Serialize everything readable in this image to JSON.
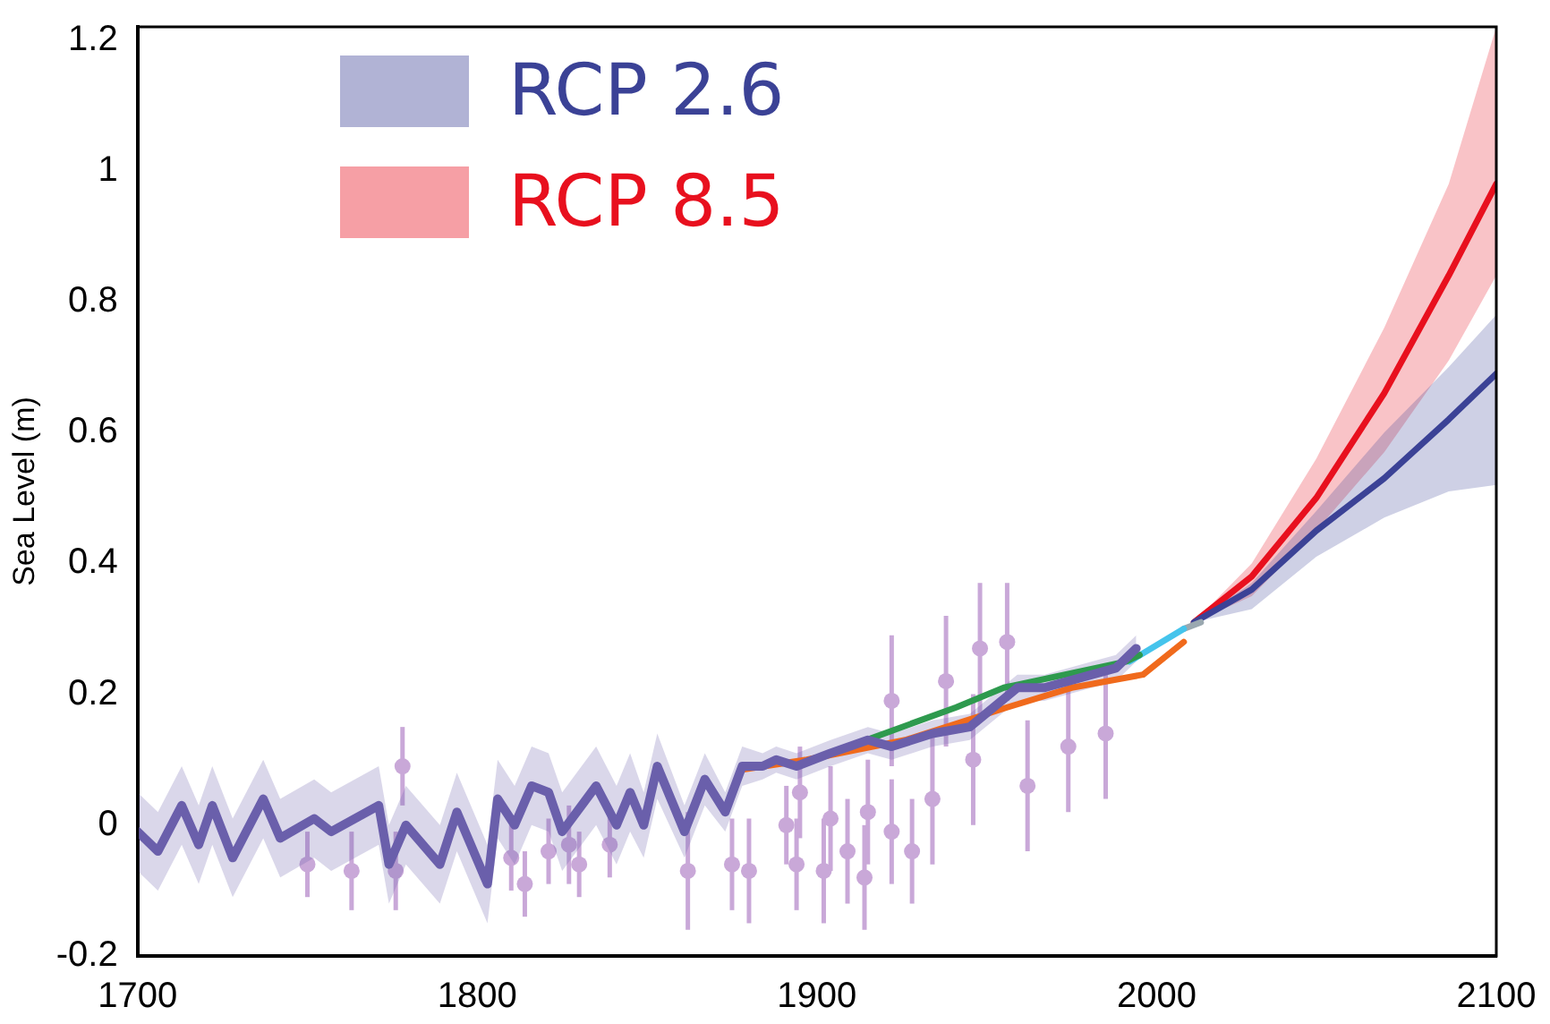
{
  "chart_data": {
    "type": "line",
    "ylabel": "Sea Level (m)",
    "xlim": [
      1700,
      2100
    ],
    "xticks": [
      1700,
      1800,
      1900,
      2000,
      2100
    ],
    "ylim": [
      -0.2,
      1.22
    ],
    "yticks": [
      -0.2,
      0,
      0.2,
      0.4,
      0.6,
      0.8,
      1,
      1.2
    ],
    "grid": false,
    "legend": "top left",
    "marker": "none",
    "line_style": "solid",
    "series": [
      {
        "type": "scatter",
        "marker": "circle",
        "color": "#c9a8d8",
        "x": [
          1750,
          1763,
          1776,
          1778,
          1810,
          1814,
          1821,
          1827,
          1830,
          1839,
          1862,
          1875,
          1880,
          1891,
          1893,
          1894,
          1895,
          1902,
          1904,
          1909,
          1914,
          1915,
          1922,
          1922,
          1928,
          1934,
          1938,
          1946,
          1948,
          1956,
          1962,
          1974,
          1985
        ],
        "values": [
          -0.06,
          -0.07,
          -0.07,
          0.09,
          -0.05,
          -0.09,
          -0.04,
          -0.03,
          -0.06,
          -0.03,
          -0.07,
          -0.06,
          -0.07,
          0,
          null,
          -0.06,
          0.05,
          -0.07,
          0.01,
          -0.04,
          -0.08,
          0.02,
          -0.01,
          0.19,
          -0.04,
          0.04,
          0.22,
          0.1,
          0.27,
          0.28,
          0.06,
          0.12,
          0.14
        ],
        "errors": [
          0.05,
          0.06,
          0.06,
          0.06,
          0.05,
          0.05,
          0.05,
          0.06,
          0.05,
          0.05,
          0.09,
          0.07,
          0.08,
          0.06,
          null,
          0.07,
          0.07,
          0.08,
          0.08,
          0.08,
          0.08,
          0.08,
          0.08,
          0.1,
          0.08,
          0.1,
          0.1,
          0.1,
          0.1,
          0.09,
          0.1,
          0.1,
          0.1
        ]
      },
      {
        "color": "#6a5fab",
        "x": [
          1700,
          1706,
          1713,
          1718,
          1722,
          1728,
          1737,
          1742,
          1752,
          1757,
          1771,
          1774,
          1779,
          1789,
          1794,
          1803,
          1806,
          1811,
          1816,
          1821,
          1825,
          1835,
          1841,
          1845,
          1849,
          1853,
          1861,
          1867,
          1873,
          1878,
          1884,
          1888,
          1894,
          1904,
          1915,
          1922,
          1934,
          1945,
          1959,
          1967,
          1981,
          1988,
          1994
        ],
        "values": [
          -0.01,
          -0.04,
          0.03,
          -0.03,
          0.03,
          -0.05,
          0.04,
          -0.02,
          0.01,
          -0.01,
          0.03,
          -0.06,
          0,
          -0.06,
          0.02,
          -0.09,
          0.04,
          0,
          0.06,
          0.05,
          -0.01,
          0.06,
          0,
          0.05,
          0,
          0.09,
          -0.01,
          0.07,
          0.02,
          0.09,
          0.09,
          0.1,
          0.09,
          0.11,
          0.13,
          0.12,
          0.14,
          0.15,
          0.21,
          0.21,
          0.23,
          0.24,
          0.27
        ],
        "lower": [
          -0.07,
          -0.1,
          -0.03,
          -0.09,
          -0.03,
          -0.11,
          -0.02,
          -0.08,
          -0.05,
          -0.07,
          -0.03,
          -0.12,
          -0.06,
          -0.12,
          -0.04,
          -0.15,
          -0.02,
          -0.06,
          0,
          -0.01,
          -0.07,
          0,
          -0.06,
          -0.01,
          -0.05,
          0.04,
          -0.05,
          0.03,
          -0.01,
          0.06,
          0.07,
          0.08,
          0.07,
          0.09,
          0.11,
          0.1,
          0.12,
          0.13,
          0.19,
          0.19,
          0.21,
          0.22,
          0.25
        ],
        "upper": [
          0.05,
          0.02,
          0.09,
          0.03,
          0.09,
          0.01,
          0.1,
          0.04,
          0.07,
          0.05,
          0.09,
          0,
          0.06,
          0,
          0.08,
          -0.03,
          0.1,
          0.06,
          0.12,
          0.11,
          0.05,
          0.12,
          0.06,
          0.11,
          0.05,
          0.14,
          0.03,
          0.11,
          0.05,
          0.12,
          0.11,
          0.12,
          0.11,
          0.13,
          0.15,
          0.14,
          0.16,
          0.17,
          0.23,
          0.23,
          0.25,
          0.26,
          0.29
        ]
      },
      {
        "color": "#2e9a4e",
        "x": [
          1904,
          1941,
          1955,
          1991,
          1995
        ],
        "values": [
          0.11,
          0.18,
          0.21,
          0.25,
          0.26
        ]
      },
      {
        "color": "#f06a1c",
        "x": [
          1878,
          1897,
          1926,
          1956,
          1975,
          1996,
          2008
        ],
        "values": [
          0.085,
          0.1,
          0.13,
          0.18,
          0.21,
          0.23,
          0.28
        ]
      },
      {
        "color": "#45c4ec",
        "x": [
          1992,
          2008
        ],
        "values": [
          0.25,
          0.3
        ]
      },
      {
        "color": "#9aa8b0",
        "x": [
          2008,
          2013
        ],
        "values": [
          0.3,
          0.31
        ]
      },
      {
        "name": "RCP 2.6",
        "color": "#3b4296",
        "x": [
          2011,
          2028,
          2047,
          2067,
          2086,
          2100
        ],
        "values": [
          0.31,
          0.36,
          0.45,
          0.53,
          0.62,
          0.69
        ],
        "lower": [
          0.31,
          0.33,
          0.41,
          0.47,
          0.51,
          0.52
        ],
        "upper": [
          0.31,
          0.37,
          0.48,
          0.6,
          0.7,
          0.78
        ]
      },
      {
        "name": "RCP 8.5",
        "color": "#e8101e",
        "x": [
          2011,
          2028,
          2047,
          2067,
          2086,
          2100
        ],
        "values": [
          0.31,
          0.38,
          0.5,
          0.66,
          0.84,
          0.98
        ],
        "lower": [
          0.31,
          0.35,
          0.45,
          0.57,
          0.71,
          0.84
        ],
        "upper": [
          0.31,
          0.4,
          0.56,
          0.76,
          0.98,
          1.22
        ]
      }
    ]
  }
}
